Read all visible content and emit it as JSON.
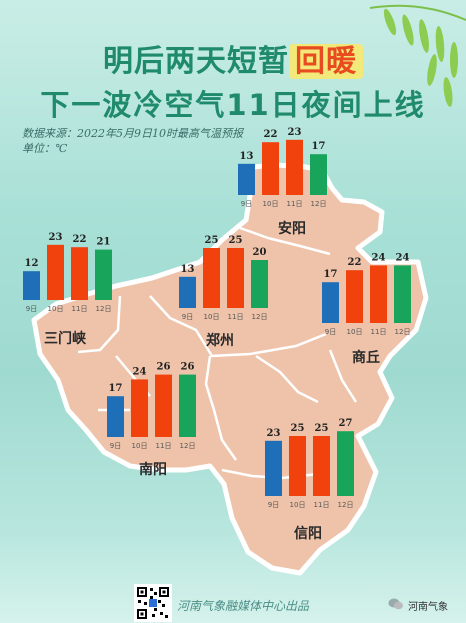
{
  "header": {
    "title_prefix": "明后两天短暂",
    "title_highlight": "回暖",
    "subtitle": "下一波冷空气11日夜间上线"
  },
  "meta": {
    "source": "数据来源：2022年5月9日10时最高气温预报",
    "unit": "单位：℃"
  },
  "footer": {
    "credit": "河南气象融媒体中心出品",
    "brand": "河南气象"
  },
  "colors": {
    "bar_9": "#1e6fb8",
    "bar_mid": "#f1420e",
    "bar_12": "#18a45a",
    "map_fill": "#eec3aa",
    "map_border": "#ffffff"
  },
  "chart_data": {
    "type": "bar",
    "categories": [
      "9日",
      "10日",
      "11日",
      "12日"
    ],
    "unit": "℃",
    "cities": [
      {
        "name": "安阳",
        "values": [
          13,
          22,
          23,
          17
        ]
      },
      {
        "name": "三门峡",
        "values": [
          12,
          23,
          22,
          21
        ]
      },
      {
        "name": "郑州",
        "values": [
          13,
          25,
          25,
          20
        ]
      },
      {
        "name": "商丘",
        "values": [
          17,
          22,
          24,
          24
        ]
      },
      {
        "name": "南阳",
        "values": [
          17,
          24,
          26,
          26
        ]
      },
      {
        "name": "信阳",
        "values": [
          23,
          25,
          25,
          27
        ]
      }
    ]
  }
}
